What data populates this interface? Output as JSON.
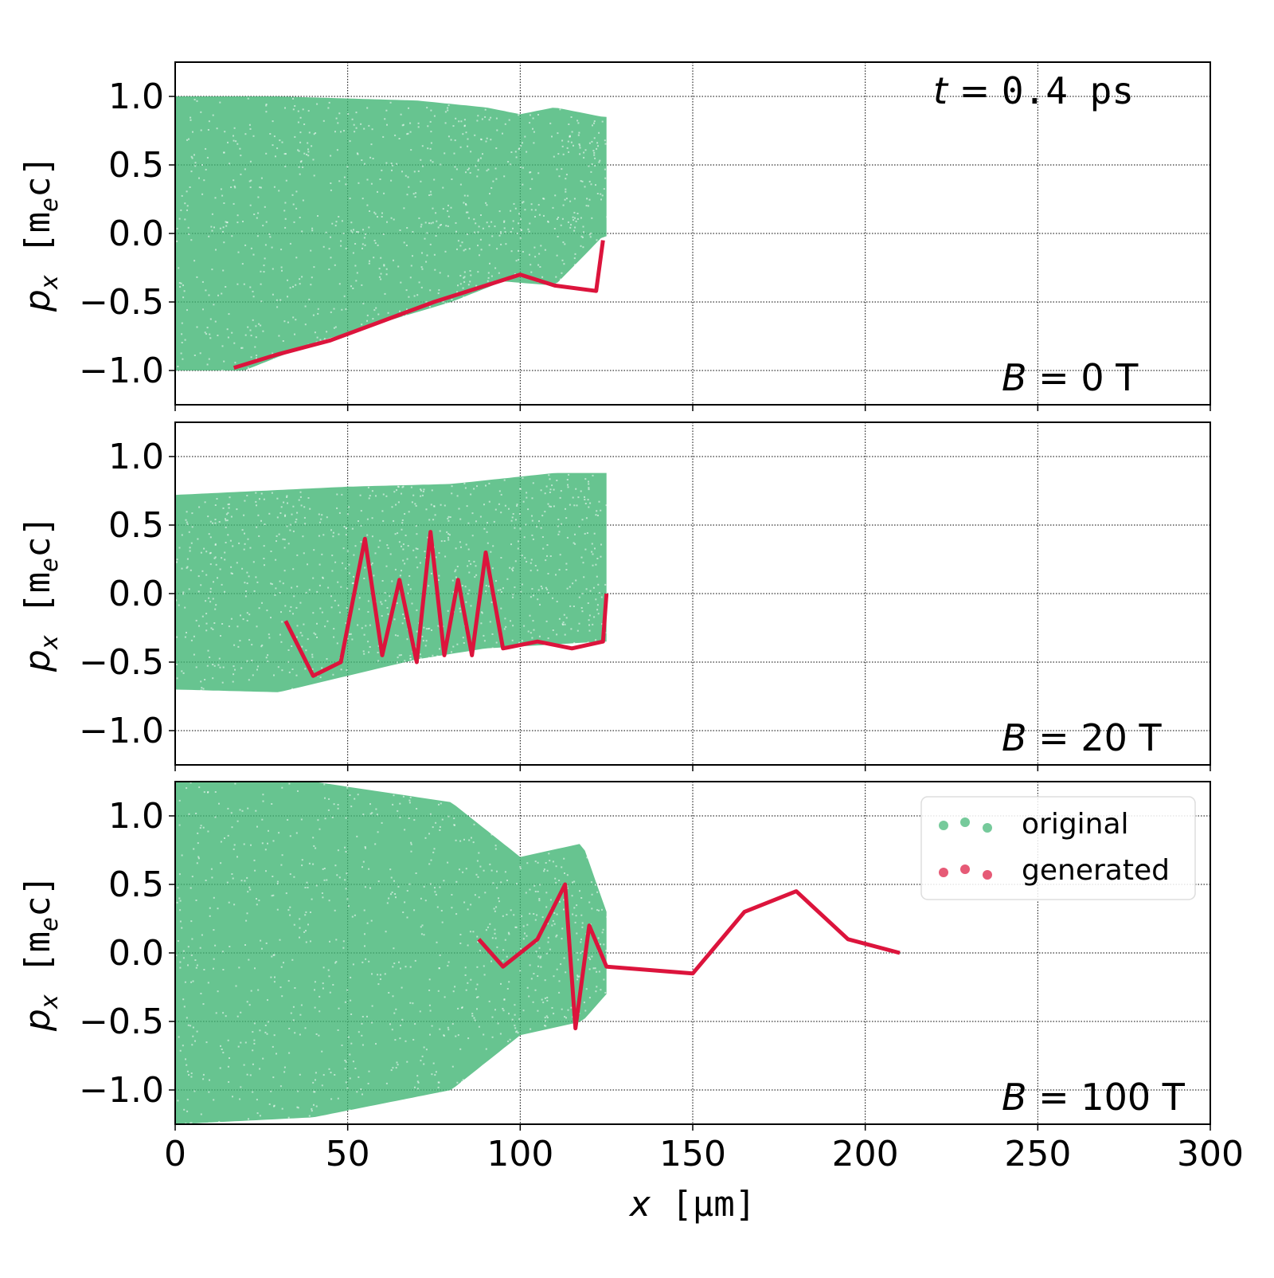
{
  "figure": {
    "time_label": {
      "var": "t",
      "eq": " = ",
      "value": "0.4 ps"
    },
    "x_label": {
      "var": "x",
      "unit": " [μm]"
    },
    "y_label": {
      "var": "p",
      "sub": "x",
      "unit_open": " [m",
      "unit_sub": "e",
      "unit_close": "c]"
    },
    "x_ticks": [
      "0",
      "50",
      "100",
      "150",
      "200",
      "250",
      "300"
    ],
    "y_ticks": [
      "1.0",
      "0.5",
      "0.0",
      "−0.5",
      "−1.0"
    ],
    "legend": {
      "original": "original",
      "generated": "generated"
    },
    "colors": {
      "original": "#3cb371",
      "generated": "#dc143c"
    }
  },
  "chart_data": [
    {
      "type": "scatter",
      "panel_label": {
        "var": "B",
        "eq": " = ",
        "value": "0 T"
      },
      "xlim": [
        0,
        300
      ],
      "ylim": [
        -1.25,
        1.25
      ],
      "grid": true,
      "series": [
        {
          "name": "original",
          "color": "#3cb371",
          "bands": [
            {
              "x0": 0,
              "x1": 125,
              "upper": [
                [
                  0,
                  1.0
                ],
                [
                  30,
                  1.0
                ],
                [
                  70,
                  0.97
                ],
                [
                  90,
                  0.92
                ],
                [
                  100,
                  0.87
                ],
                [
                  110,
                  0.92
                ],
                [
                  124,
                  0.85
                ]
              ],
              "lower": [
                [
                  0,
                  -1.0
                ],
                [
                  20,
                  -1.0
                ],
                [
                  40,
                  -0.8
                ],
                [
                  60,
                  -0.65
                ],
                [
                  80,
                  -0.5
                ],
                [
                  95,
                  -0.35
                ],
                [
                  110,
                  -0.38
                ],
                [
                  124,
                  -0.02
                ]
              ]
            }
          ]
        },
        {
          "name": "generated",
          "color": "#dc143c",
          "curves": [
            [
              [
                17,
                -0.98
              ],
              [
                30,
                -0.88
              ],
              [
                45,
                -0.78
              ],
              [
                60,
                -0.64
              ],
              [
                75,
                -0.5
              ],
              [
                90,
                -0.38
              ],
              [
                100,
                -0.3
              ],
              [
                110,
                -0.38
              ],
              [
                122,
                -0.42
              ],
              [
                124,
                -0.05
              ]
            ]
          ]
        }
      ]
    },
    {
      "type": "scatter",
      "panel_label": {
        "var": "B",
        "eq": " = ",
        "value": "20 T"
      },
      "xlim": [
        0,
        300
      ],
      "ylim": [
        -1.25,
        1.25
      ],
      "grid": true,
      "series": [
        {
          "name": "original",
          "color": "#3cb371",
          "bands": [
            {
              "x0": 0,
              "x1": 125,
              "upper": [
                [
                  0,
                  0.72
                ],
                [
                  50,
                  0.78
                ],
                [
                  80,
                  0.8
                ],
                [
                  110,
                  0.88
                ],
                [
                  124,
                  0.88
                ]
              ],
              "lower": [
                [
                  0,
                  -0.7
                ],
                [
                  30,
                  -0.72
                ],
                [
                  50,
                  -0.6
                ],
                [
                  70,
                  -0.48
                ],
                [
                  90,
                  -0.4
                ],
                [
                  124,
                  -0.35
                ]
              ]
            }
          ]
        },
        {
          "name": "generated",
          "color": "#dc143c",
          "curves": [
            [
              [
                32,
                -0.2
              ],
              [
                40,
                -0.6
              ],
              [
                48,
                -0.5
              ],
              [
                55,
                0.4
              ],
              [
                60,
                -0.45
              ],
              [
                65,
                0.1
              ],
              [
                70,
                -0.5
              ],
              [
                74,
                0.45
              ],
              [
                78,
                -0.45
              ],
              [
                82,
                0.1
              ],
              [
                86,
                -0.45
              ],
              [
                90,
                0.3
              ],
              [
                95,
                -0.4
              ],
              [
                105,
                -0.35
              ],
              [
                115,
                -0.4
              ],
              [
                124,
                -0.35
              ],
              [
                125,
                0.0
              ]
            ]
          ]
        }
      ]
    },
    {
      "type": "scatter",
      "panel_label": {
        "var": "B",
        "eq": " = ",
        "value": "100 T"
      },
      "xlim": [
        0,
        300
      ],
      "ylim": [
        -1.25,
        1.25
      ],
      "grid": true,
      "series": [
        {
          "name": "original",
          "color": "#3cb371",
          "bands": [
            {
              "x0": 0,
              "x1": 125,
              "upper": [
                [
                  0,
                  1.25
                ],
                [
                  40,
                  1.25
                ],
                [
                  80,
                  1.1
                ],
                [
                  100,
                  0.7
                ],
                [
                  118,
                  0.8
                ],
                [
                  125,
                  0.3
                ]
              ],
              "lower": [
                [
                  0,
                  -1.25
                ],
                [
                  40,
                  -1.2
                ],
                [
                  80,
                  -1.0
                ],
                [
                  100,
                  -0.6
                ],
                [
                  118,
                  -0.5
                ],
                [
                  125,
                  -0.3
                ]
              ]
            }
          ]
        },
        {
          "name": "generated",
          "color": "#dc143c",
          "curves": [
            [
              [
                88,
                0.1
              ],
              [
                95,
                -0.1
              ],
              [
                105,
                0.1
              ],
              [
                113,
                0.5
              ],
              [
                116,
                -0.55
              ],
              [
                120,
                0.2
              ],
              [
                125,
                -0.1
              ],
              [
                150,
                -0.15
              ],
              [
                165,
                0.3
              ],
              [
                180,
                0.45
              ],
              [
                195,
                0.1
              ],
              [
                210,
                0.0
              ]
            ]
          ]
        }
      ]
    }
  ]
}
